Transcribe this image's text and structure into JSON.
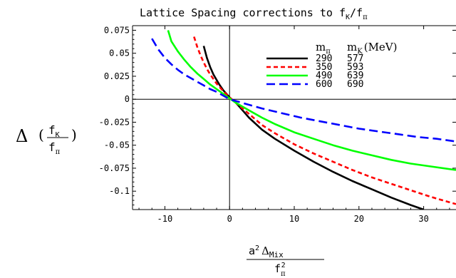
{
  "chart_data": {
    "type": "line",
    "title": "Lattice Spacing corrections to f",
    "title_sub": "K",
    "title_sep": "/f",
    "title_sub2": "π",
    "ylabel": {
      "delta": "Δ",
      "open": "(",
      "close": ")",
      "num": "f",
      "num_sub": "K",
      "den": "f",
      "den_sub": "π"
    },
    "xlabel": {
      "num": "a",
      "num_sup": "2",
      "num_delta": "Δ",
      "num_sub": "Mix",
      "den": "f",
      "den_sub": "π",
      "den_sup": "2"
    },
    "xlim": [
      -15,
      35
    ],
    "ylim": [
      -0.12,
      0.08
    ],
    "x_ticks": [
      -10,
      0,
      10,
      20,
      30
    ],
    "x_tick_labels": [
      "-10",
      "0",
      "10",
      "20",
      "30"
    ],
    "y_ticks": [
      0.075,
      0.05,
      0.025,
      0,
      -0.025,
      -0.05,
      -0.075,
      -0.1
    ],
    "y_tick_labels": [
      "0.075",
      "0.05",
      "0.025",
      "0",
      "-0.025",
      "-0.05",
      "-0.075",
      "-0.1"
    ],
    "grid": false,
    "legend_placement": "top-right",
    "legend_header": {
      "m_pi": "m",
      "m_pi_sub": "π",
      "m_K": "m",
      "m_K_sub": "K",
      "unit": "(MeV)"
    },
    "series": [
      {
        "name": "290 577",
        "m_pi": "290",
        "m_K": "577",
        "color": "#000000",
        "dash": "solid",
        "points": [
          [
            -4.0,
            0.058
          ],
          [
            -3.5,
            0.045
          ],
          [
            -3.0,
            0.035
          ],
          [
            -2.5,
            0.027
          ],
          [
            -2.0,
            0.021
          ],
          [
            -1.5,
            0.015
          ],
          [
            -1.0,
            0.01
          ],
          [
            0,
            0.002
          ],
          [
            1,
            -0.004
          ],
          [
            2,
            -0.012
          ],
          [
            3,
            -0.02
          ],
          [
            5,
            -0.033
          ],
          [
            7,
            -0.043
          ],
          [
            10,
            -0.056
          ],
          [
            13,
            -0.068
          ],
          [
            16,
            -0.079
          ],
          [
            19,
            -0.089
          ],
          [
            22,
            -0.098
          ],
          [
            25,
            -0.107
          ],
          [
            28,
            -0.115
          ],
          [
            30,
            -0.12
          ]
        ]
      },
      {
        "name": "350 593",
        "m_pi": "350",
        "m_K": "593",
        "color": "#ff0000",
        "dash": "dashed",
        "points": [
          [
            -5.5,
            0.068
          ],
          [
            -5.0,
            0.057
          ],
          [
            -4.5,
            0.048
          ],
          [
            -4.0,
            0.04
          ],
          [
            -3.5,
            0.033
          ],
          [
            -3.0,
            0.027
          ],
          [
            -2.5,
            0.022
          ],
          [
            -2.0,
            0.017
          ],
          [
            -1.0,
            0.009
          ],
          [
            0,
            0.002
          ],
          [
            1,
            -0.004
          ],
          [
            3,
            -0.016
          ],
          [
            5,
            -0.028
          ],
          [
            7,
            -0.037
          ],
          [
            10,
            -0.049
          ],
          [
            13,
            -0.059
          ],
          [
            16,
            -0.068
          ],
          [
            19,
            -0.077
          ],
          [
            22,
            -0.085
          ],
          [
            25,
            -0.092
          ],
          [
            28,
            -0.099
          ],
          [
            31,
            -0.106
          ],
          [
            34,
            -0.112
          ],
          [
            35,
            -0.114
          ]
        ]
      },
      {
        "name": "490 639",
        "m_pi": "490",
        "m_K": "639",
        "color": "#00ff00",
        "dash": "solid",
        "points": [
          [
            -9.5,
            0.075
          ],
          [
            -9.0,
            0.063
          ],
          [
            -8.0,
            0.052
          ],
          [
            -7.0,
            0.043
          ],
          [
            -6.0,
            0.035
          ],
          [
            -5.0,
            0.028
          ],
          [
            -4.0,
            0.022
          ],
          [
            -3.0,
            0.016
          ],
          [
            -2.0,
            0.011
          ],
          [
            -1.0,
            0.006
          ],
          [
            0,
            0.001
          ],
          [
            1,
            -0.004
          ],
          [
            3,
            -0.012
          ],
          [
            5,
            -0.02
          ],
          [
            7,
            -0.027
          ],
          [
            10,
            -0.036
          ],
          [
            13,
            -0.043
          ],
          [
            16,
            -0.05
          ],
          [
            19,
            -0.056
          ],
          [
            22,
            -0.061
          ],
          [
            25,
            -0.066
          ],
          [
            28,
            -0.07
          ],
          [
            31,
            -0.073
          ],
          [
            35,
            -0.077
          ]
        ]
      },
      {
        "name": "600 690",
        "m_pi": "600",
        "m_K": "690",
        "color": "#0000ff",
        "dash": "dashed",
        "points": [
          [
            -12.0,
            0.066
          ],
          [
            -11.0,
            0.054
          ],
          [
            -10.0,
            0.045
          ],
          [
            -9.0,
            0.038
          ],
          [
            -8.0,
            0.032
          ],
          [
            -7.0,
            0.027
          ],
          [
            -6.0,
            0.023
          ],
          [
            -5.0,
            0.019
          ],
          [
            -4.0,
            0.015
          ],
          [
            -3.0,
            0.011
          ],
          [
            -2.0,
            0.008
          ],
          [
            -1.0,
            0.004
          ],
          [
            0,
            0.0
          ],
          [
            2,
            -0.004
          ],
          [
            5,
            -0.01
          ],
          [
            8,
            -0.015
          ],
          [
            11,
            -0.02
          ],
          [
            14,
            -0.024
          ],
          [
            17,
            -0.028
          ],
          [
            20,
            -0.032
          ],
          [
            23,
            -0.035
          ],
          [
            26,
            -0.038
          ],
          [
            29,
            -0.041
          ],
          [
            32,
            -0.043
          ],
          [
            35,
            -0.046
          ]
        ]
      }
    ]
  }
}
